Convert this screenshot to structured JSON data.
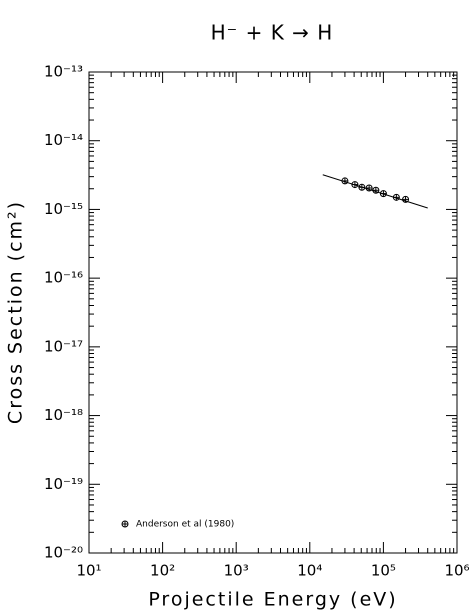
{
  "chart_data": {
    "type": "scatter",
    "title": "H⁻ + K → H",
    "x_label": "Projectile Energy (eV)",
    "y_label": "Cross Section (cm²)",
    "log_x": true,
    "log_y": true,
    "minor_ticks": true,
    "xlim": [
      10,
      1000000
    ],
    "xticks": [
      {
        "value": 10,
        "label": "10¹"
      },
      {
        "value": 100,
        "label": "10²"
      },
      {
        "value": 1000,
        "label": "10³"
      },
      {
        "value": 10000,
        "label": "10⁴"
      },
      {
        "value": 100000,
        "label": "10⁵"
      },
      {
        "value": 1000000,
        "label": "10⁶"
      }
    ],
    "ylim": [
      1e-20,
      1e-13
    ],
    "yticks": [
      {
        "value": 1e-20,
        "label": "10⁻²⁰"
      },
      {
        "value": 1e-19,
        "label": "10⁻¹⁹"
      },
      {
        "value": 1e-18,
        "label": "10⁻¹⁸"
      },
      {
        "value": 1e-17,
        "label": "10⁻¹⁷"
      },
      {
        "value": 1e-16,
        "label": "10⁻¹⁶"
      },
      {
        "value": 1e-15,
        "label": "10⁻¹⁵"
      },
      {
        "value": 1e-14,
        "label": "10⁻¹⁴"
      },
      {
        "value": 1e-13,
        "label": "10⁻¹³"
      }
    ],
    "legend_position": "lower left",
    "series": [
      {
        "name": "Anderson et al (1980)",
        "color": "#000000",
        "x": [
          30000,
          41000,
          51000,
          64000,
          79000,
          100000,
          150000,
          200000
        ],
        "values": [
          2.6e-15,
          2.3e-15,
          2.1e-15,
          2.05e-15,
          1.9e-15,
          1.7e-15,
          1.5e-15,
          1.4e-15
        ]
      }
    ],
    "fit": {
      "color": "#000000",
      "x": [
        15000,
        400000
      ],
      "values": [
        3.2e-15,
        1.05e-15
      ]
    }
  }
}
